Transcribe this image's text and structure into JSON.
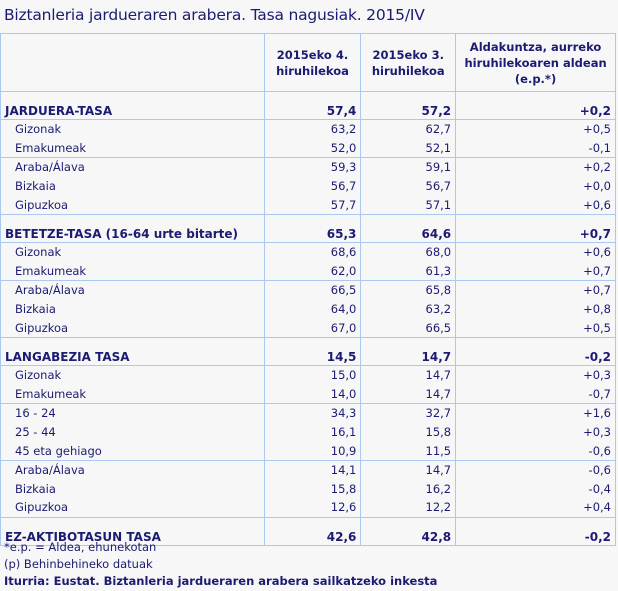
{
  "title": "Biztanleria jardueraren arabera. Tasa nagusiak. 2015/IV",
  "columns": [
    "",
    "2015eko 4. hiruhilekoa",
    "2015eko 3. hiruhilekoa",
    "Aldakuntza, aurreko hiruhilekoaren aldean (e.p.*)"
  ],
  "columns_lines": [
    [
      "2015eko 4.",
      "hiruhilekoa"
    ],
    [
      "2015eko 3.",
      "hiruhilekoa"
    ],
    [
      "Aldakuntza, aurreko",
      "hiruhilekoaren aldean",
      "(e.p.*)"
    ]
  ],
  "sections": [
    {
      "label": "JARDUERA-TASA",
      "v": [
        "57,4",
        "57,2",
        "+0,2"
      ],
      "groups": [
        [
          {
            "label": "Gizonak",
            "v": [
              "63,2",
              "62,7",
              "+0,5"
            ]
          },
          {
            "label": "Emakumeak",
            "v": [
              "52,0",
              "52,1",
              "-0,1"
            ]
          }
        ],
        [
          {
            "label": "Araba/Álava",
            "v": [
              "59,3",
              "59,1",
              "+0,2"
            ]
          },
          {
            "label": "Bizkaia",
            "v": [
              "56,7",
              "56,7",
              "+0,0"
            ]
          },
          {
            "label": "Gipuzkoa",
            "v": [
              "57,7",
              "57,1",
              "+0,6"
            ]
          }
        ]
      ]
    },
    {
      "label": "BETETZE-TASA (16-64 urte bitarte)",
      "v": [
        "65,3",
        "64,6",
        "+0,7"
      ],
      "groups": [
        [
          {
            "label": "Gizonak",
            "v": [
              "68,6",
              "68,0",
              "+0,6"
            ]
          },
          {
            "label": "Emakumeak",
            "v": [
              "62,0",
              "61,3",
              "+0,7"
            ]
          }
        ],
        [
          {
            "label": "Araba/Álava",
            "v": [
              "66,5",
              "65,8",
              "+0,7"
            ]
          },
          {
            "label": "Bizkaia",
            "v": [
              "64,0",
              "63,2",
              "+0,8"
            ]
          },
          {
            "label": "Gipuzkoa",
            "v": [
              "67,0",
              "66,5",
              "+0,5"
            ]
          }
        ]
      ]
    },
    {
      "label": "LANGABEZIA TASA",
      "v": [
        "14,5",
        "14,7",
        "-0,2"
      ],
      "groups": [
        [
          {
            "label": "Gizonak",
            "v": [
              "15,0",
              "14,7",
              "+0,3"
            ]
          },
          {
            "label": "Emakumeak",
            "v": [
              "14,0",
              "14,7",
              "-0,7"
            ]
          }
        ],
        [
          {
            "label": "16 - 24",
            "v": [
              "34,3",
              "32,7",
              "+1,6"
            ]
          },
          {
            "label": "25 - 44",
            "v": [
              "16,1",
              "15,8",
              "+0,3"
            ]
          },
          {
            "label": "45 eta gehiago",
            "v": [
              "10,9",
              "11,5",
              "-0,6"
            ]
          }
        ],
        [
          {
            "label": "Araba/Álava",
            "v": [
              "14,1",
              "14,7",
              "-0,6"
            ]
          },
          {
            "label": "Bizkaia",
            "v": [
              "15,8",
              "16,2",
              "-0,4"
            ]
          },
          {
            "label": "Gipuzkoa",
            "v": [
              "12,6",
              "12,2",
              "+0,4"
            ]
          }
        ]
      ]
    },
    {
      "label": "EZ-AKTIBOTASUN  TASA",
      "v": [
        "42,6",
        "42,8",
        "-0,2"
      ],
      "groups": []
    }
  ],
  "notes": [
    "*e.p. = Aldea, ehunekotan",
    "(p) Behinbehineko datuak"
  ],
  "source": "Iturria: Eustat. Biztanleria jardueraren arabera sailkatzeko inkesta"
}
